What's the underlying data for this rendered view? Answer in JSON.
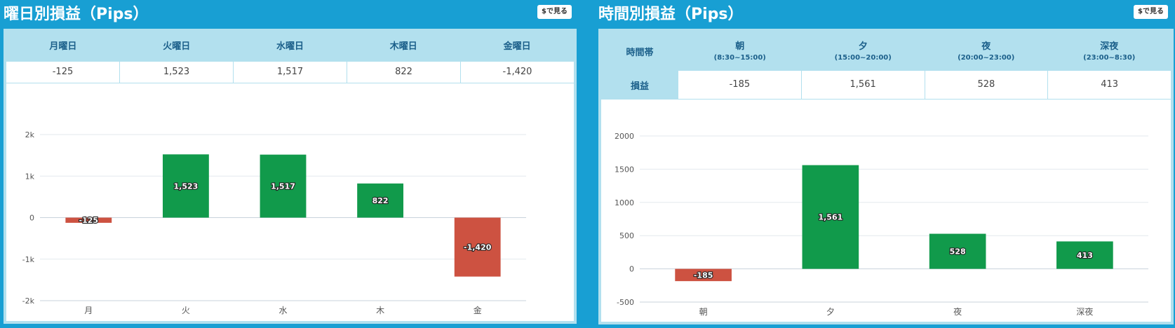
{
  "weekday": {
    "title": "曜日別損益（Pips）",
    "yen_button": "$で見る",
    "headers": [
      "月曜日",
      "火曜日",
      "水曜日",
      "木曜日",
      "金曜日"
    ],
    "values": [
      "-125",
      "1,523",
      "1,517",
      "822",
      "-1,420"
    ]
  },
  "timezone": {
    "title": "時間別損益（Pips）",
    "yen_button": "$で見る",
    "row_label_time": "時間帯",
    "row_label_pnl": "損益",
    "headers": [
      {
        "name": "朝",
        "range": "(8:30~15:00)"
      },
      {
        "name": "夕",
        "range": "(15:00~20:00)"
      },
      {
        "name": "夜",
        "range": "(20:00~23:00)"
      },
      {
        "name": "深夜",
        "range": "(23:00~8:30)"
      }
    ],
    "values": [
      "-185",
      "1,561",
      "528",
      "413"
    ]
  },
  "colors": {
    "positive": "#119a4b",
    "negative": "#cd5241",
    "accent": "#189fd3",
    "header_bg": "#b2e0ee"
  },
  "chart_data": [
    {
      "type": "bar",
      "categories": [
        "月",
        "火",
        "水",
        "木",
        "金"
      ],
      "values": [
        -125,
        1523,
        1517,
        822,
        -1420
      ],
      "labels": [
        "-125",
        "1,523",
        "1,517",
        "822",
        "-1,420"
      ],
      "ylim": [
        -2000,
        2000
      ],
      "yticks": [
        2000,
        1000,
        0,
        -1000,
        -2000
      ],
      "yticklabels": [
        "2k",
        "1k",
        "0",
        "-1k",
        "-2k"
      ],
      "grid": true
    },
    {
      "type": "bar",
      "categories": [
        "朝",
        "夕",
        "夜",
        "深夜"
      ],
      "values": [
        -185,
        1561,
        528,
        413
      ],
      "labels": [
        "-185",
        "1,561",
        "528",
        "413"
      ],
      "ylim": [
        -500,
        2000
      ],
      "yticks": [
        2000,
        1500,
        1000,
        500,
        0,
        -500
      ],
      "yticklabels": [
        "2000",
        "1500",
        "1000",
        "500",
        "0",
        "-500"
      ],
      "grid": true
    }
  ]
}
